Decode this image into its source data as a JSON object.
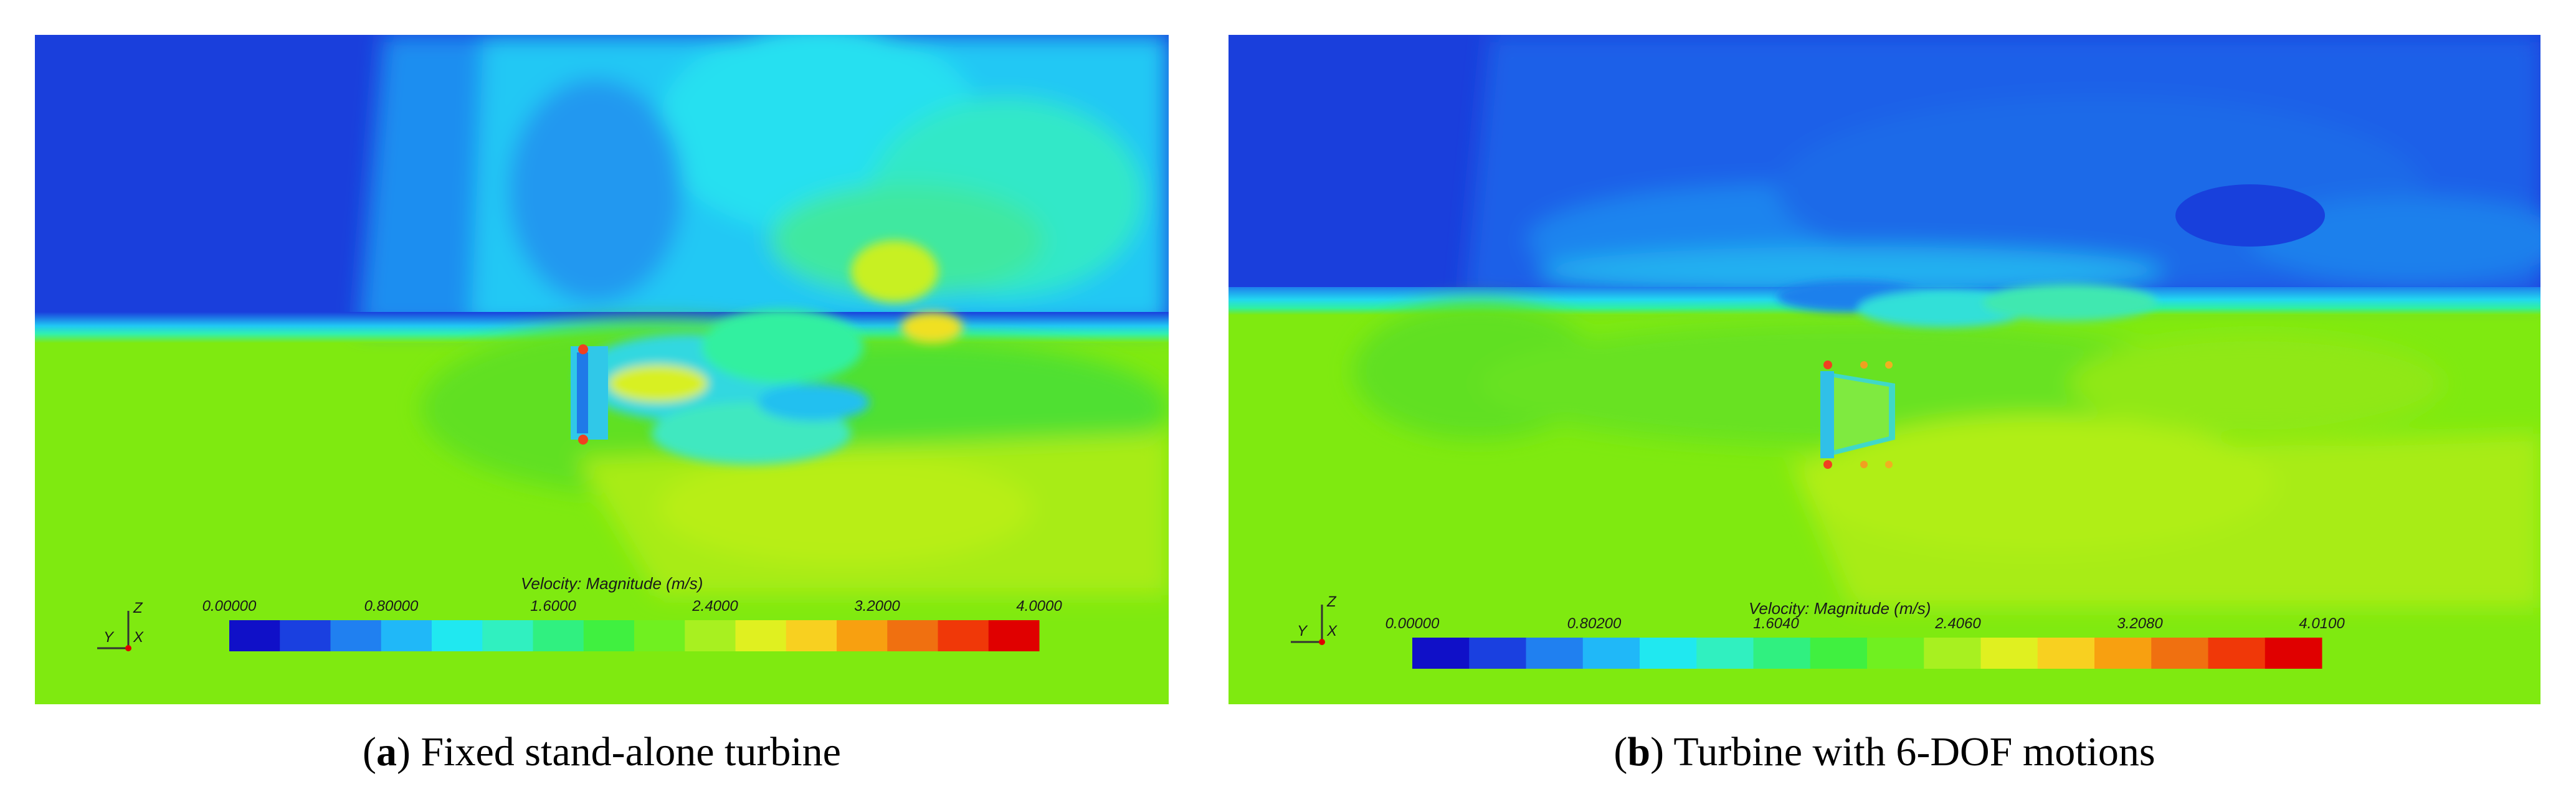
{
  "panels": [
    {
      "id": "a",
      "caption_letter": "a",
      "caption_text": " Fixed stand-alone turbine",
      "colorbar_title": "Velocity: Magnitude (m/s)",
      "colorbar_ticks": [
        "0.00000",
        "0.80000",
        "1.6000",
        "2.4000",
        "3.2000",
        "4.0000"
      ],
      "axis_labels": [
        "Z",
        "Y",
        "X"
      ]
    },
    {
      "id": "b",
      "caption_letter": "b",
      "caption_text": " Turbine with 6-DOF motions",
      "colorbar_title": "Velocity: Magnitude (m/s)",
      "colorbar_ticks": [
        "0.00000",
        "0.80200",
        "1.6040",
        "2.4060",
        "3.2080",
        "4.0100"
      ],
      "axis_labels": [
        "Z",
        "Y",
        "X"
      ]
    }
  ],
  "colors": {
    "water": "#7fea10",
    "air": "#1a3fdc",
    "interface": "#22d8f0",
    "colormap": [
      "#1010c8",
      "#1a40e0",
      "#2080f0",
      "#20b8f8",
      "#20e8f0",
      "#30f0c0",
      "#30f080",
      "#40f040",
      "#70f020",
      "#a8f020",
      "#e0f020",
      "#f8d020",
      "#f8a010",
      "#f07010",
      "#f03808",
      "#e00000"
    ]
  }
}
